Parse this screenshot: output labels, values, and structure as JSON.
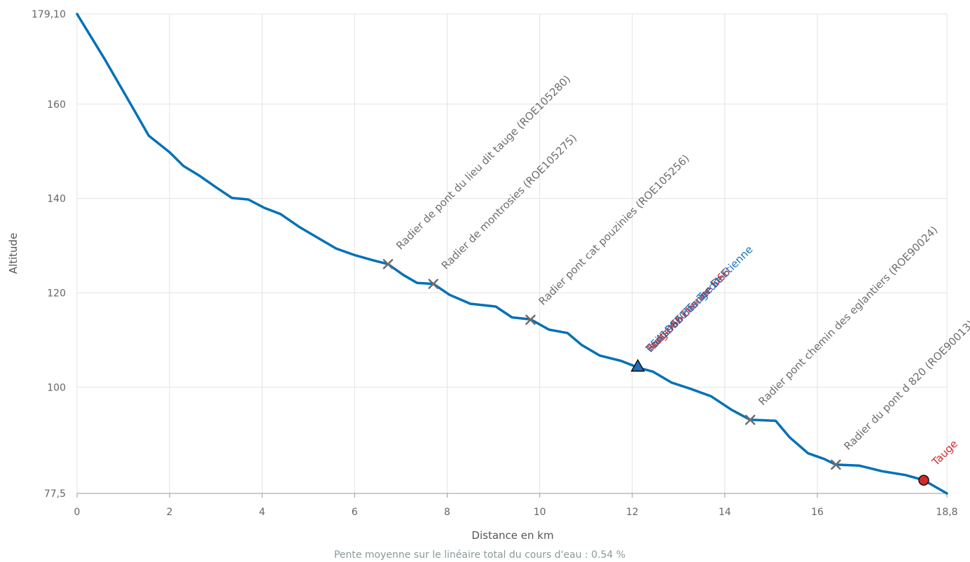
{
  "chart_data": {
    "type": "line",
    "xlabel": "Distance en km",
    "ylabel": "Altitude",
    "xlim": [
      0,
      18.8
    ],
    "ylim": [
      77.5,
      179.1
    ],
    "x_ticks": [
      0,
      2,
      4,
      6,
      8,
      10,
      12,
      14,
      16
    ],
    "x_tick_labels": [
      "0",
      "2",
      "4",
      "6",
      "8",
      "10",
      "12",
      "14",
      "16"
    ],
    "x_max_label": "18,8",
    "y_ticks": [
      100,
      120,
      140,
      160
    ],
    "y_tick_labels": [
      "100",
      "120",
      "140",
      "160"
    ],
    "y_min_label": "77,5",
    "y_max_label": "179,10",
    "grid": true,
    "line_color": "#0071b8",
    "series": [
      {
        "x": [
          0,
          0.6,
          1.2,
          1.55,
          2.0,
          2.3,
          2.65,
          3.0,
          3.35,
          3.7,
          4.05,
          4.4,
          4.8,
          5.2,
          5.6,
          6.0,
          6.4,
          6.72,
          7.05,
          7.35,
          7.7,
          8.05,
          8.5,
          9.05,
          9.4,
          9.8,
          10.2,
          10.6,
          10.9,
          11.3,
          11.75,
          12.15,
          12.45,
          12.85,
          13.25,
          13.7,
          14.15,
          14.55,
          15.1,
          15.4,
          15.8,
          16.15,
          16.4,
          16.9,
          17.4,
          17.9,
          18.3,
          18.8
        ],
        "y": [
          179.1,
          169.5,
          159.3,
          153.3,
          149.8,
          146.9,
          144.8,
          142.4,
          140.1,
          139.8,
          138.0,
          136.7,
          134.0,
          131.7,
          129.4,
          128.0,
          126.9,
          126.1,
          123.8,
          122.1,
          121.9,
          119.6,
          117.7,
          117.1,
          114.8,
          114.4,
          112.2,
          111.5,
          109.0,
          106.7,
          105.6,
          104.1,
          103.3,
          101.0,
          99.7,
          98.1,
          95.2,
          93.1,
          92.9,
          89.4,
          86.0,
          84.8,
          83.6,
          83.4,
          82.2,
          81.4,
          80.3,
          77.5
        ]
      }
    ],
    "annotations": [
      {
        "x": 6.72,
        "y": 126.1,
        "marker": "cross",
        "color": "#6e6e6e",
        "text": "Radier de pont du lieu dit tauge (ROE105280)"
      },
      {
        "x": 7.7,
        "y": 121.9,
        "marker": "cross",
        "color": "#6e6e6e",
        "text": "Radier de montrosies (ROE105275)"
      },
      {
        "x": 9.8,
        "y": 114.3,
        "marker": "cross",
        "color": "#6e6e6e",
        "text": "Radier pont cat pouzinies (ROE105256)"
      },
      {
        "x": 12.12,
        "y": 104.3,
        "marker": "triangle",
        "color": "#1e6fb8",
        "text": "Ruisseau des Terdre"
      },
      {
        "x": 12.12,
        "y": 104.3,
        "marker": "none",
        "color": "#d12a2a",
        "text": "Pont D66"
      },
      {
        "x": 12.12,
        "y": 104.3,
        "marker": "none",
        "color": "#d12a2a",
        "text": "Tauge St-Etienne D66"
      },
      {
        "x": 12.12,
        "y": 104.3,
        "marker": "none",
        "color": "#1e6fb8",
        "text": "05410020 Tauge St-Etienne"
      },
      {
        "x": 14.55,
        "y": 93.1,
        "marker": "cross",
        "color": "#6e6e6e",
        "text": "Radier pont chemin des eglantiers (ROE90024)"
      },
      {
        "x": 16.4,
        "y": 83.6,
        "marker": "cross",
        "color": "#6e6e6e",
        "text": "Radier du pont d 820 (ROE90013)"
      },
      {
        "x": 18.3,
        "y": 80.3,
        "marker": "circle",
        "color": "#d12a2a",
        "text": "Tauge"
      }
    ]
  },
  "footer": {
    "slope_text": "Pente moyenne sur le linéaire total du cours d'eau : 0.54 %"
  }
}
